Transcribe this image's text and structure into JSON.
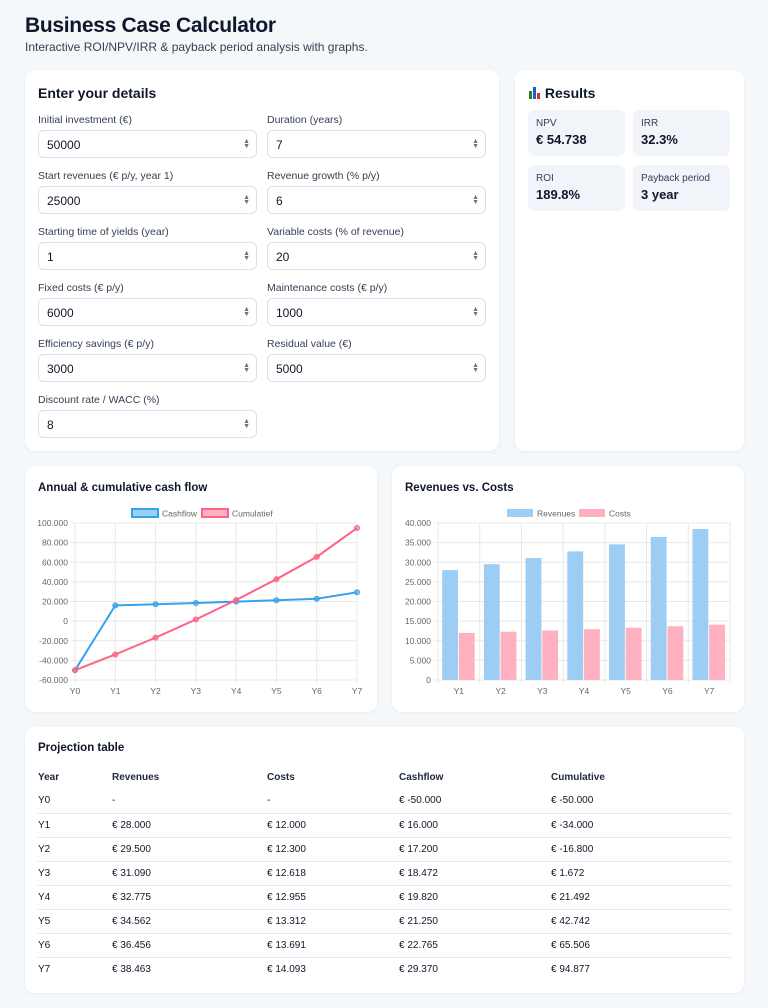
{
  "header": {
    "title": "Business Case Calculator",
    "subtitle": "Interactive ROI/NPV/IRR & payback period analysis with graphs."
  },
  "form": {
    "title": "Enter your details",
    "fields": [
      {
        "label": "Initial investment (€)",
        "value": "50000"
      },
      {
        "label": "Duration (years)",
        "value": "7"
      },
      {
        "label": "Start revenues (€ p/y, year 1)",
        "value": "25000"
      },
      {
        "label": "Revenue growth (% p/y)",
        "value": "6"
      },
      {
        "label": "Starting time of yields (year)",
        "value": "1"
      },
      {
        "label": "Variable costs (% of revenue)",
        "value": "20"
      },
      {
        "label": "Fixed costs (€ p/y)",
        "value": "6000"
      },
      {
        "label": "Maintenance costs (€ p/y)",
        "value": "1000"
      },
      {
        "label": "Efficiency savings (€ p/y)",
        "value": "3000"
      },
      {
        "label": "Residual value (€)",
        "value": "5000"
      },
      {
        "label": "Discount rate / WACC (%)",
        "value": "8"
      }
    ]
  },
  "results": {
    "title": "Results",
    "icon": "bar-chart-icon",
    "items": [
      {
        "label": "NPV",
        "value": "€ 54.738"
      },
      {
        "label": "IRR",
        "value": "32.3%"
      },
      {
        "label": "ROI",
        "value": "189.8%"
      },
      {
        "label": "Payback period",
        "value": "3 year"
      }
    ]
  },
  "chart_data": [
    {
      "type": "line",
      "title": "Annual & cumulative cash flow",
      "categories": [
        "Y0",
        "Y1",
        "Y2",
        "Y3",
        "Y4",
        "Y5",
        "Y6",
        "Y7"
      ],
      "series": [
        {
          "name": "Cashflow",
          "color": "#36a2eb",
          "values": [
            -50000,
            16000,
            17200,
            18472,
            19820,
            21250,
            22765,
            29370
          ]
        },
        {
          "name": "Cumulatief",
          "color": "#ff6384",
          "values": [
            -50000,
            -34000,
            -16800,
            1672,
            21492,
            42742,
            65506,
            94877
          ]
        }
      ],
      "ylim": [
        -60000,
        100000
      ],
      "yticks": [
        "100.000",
        "80.000",
        "60.000",
        "40.000",
        "20.000",
        "0",
        "-20.000",
        "-40.000",
        "-60.000"
      ],
      "grid": true,
      "legend": "top"
    },
    {
      "type": "bar",
      "title": "Revenues vs. Costs",
      "categories": [
        "Y1",
        "Y2",
        "Y3",
        "Y4",
        "Y5",
        "Y6",
        "Y7"
      ],
      "series": [
        {
          "name": "Revenues",
          "color": "#9ecdf3",
          "values": [
            28000,
            29500,
            31090,
            32775,
            34562,
            36456,
            38463
          ]
        },
        {
          "name": "Costs",
          "color": "#ffb1c1",
          "values": [
            12000,
            12300,
            12618,
            12955,
            13312,
            13691,
            14093
          ]
        }
      ],
      "ylim": [
        0,
        40000
      ],
      "yticks": [
        "40.000",
        "35.000",
        "30.000",
        "25.000",
        "20.000",
        "15.000",
        "10.000",
        "5.000",
        "0"
      ],
      "grid": true,
      "legend": "top"
    }
  ],
  "table": {
    "title": "Projection table",
    "columns": [
      "Year",
      "Revenues",
      "Costs",
      "Cashflow",
      "Cumulative"
    ],
    "rows": [
      [
        "Y0",
        "-",
        "-",
        "€ -50.000",
        "€ -50.000"
      ],
      [
        "Y1",
        "€ 28.000",
        "€ 12.000",
        "€ 16.000",
        "€ -34.000"
      ],
      [
        "Y2",
        "€ 29.500",
        "€ 12.300",
        "€ 17.200",
        "€ -16.800"
      ],
      [
        "Y3",
        "€ 31.090",
        "€ 12.618",
        "€ 18.472",
        "€ 1.672"
      ],
      [
        "Y4",
        "€ 32.775",
        "€ 12.955",
        "€ 19.820",
        "€ 21.492"
      ],
      [
        "Y5",
        "€ 34.562",
        "€ 13.312",
        "€ 21.250",
        "€ 42.742"
      ],
      [
        "Y6",
        "€ 36.456",
        "€ 13.691",
        "€ 22.765",
        "€ 65.506"
      ],
      [
        "Y7",
        "€ 38.463",
        "€ 14.093",
        "€ 29.370",
        "€ 94.877"
      ]
    ]
  }
}
